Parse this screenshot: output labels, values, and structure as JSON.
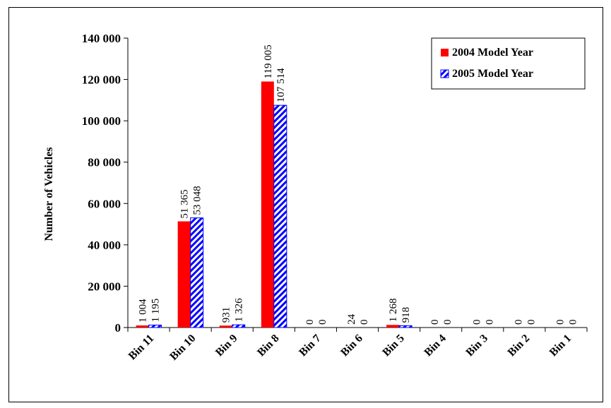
{
  "chart_data": {
    "type": "bar",
    "title": "",
    "xlabel": "",
    "ylabel": "Number of Vehicles",
    "ylim": [
      0,
      140000
    ],
    "yticks": [
      "0",
      "20 000",
      "40 000",
      "60 000",
      "80 000",
      "100 000",
      "120 000",
      "140 000"
    ],
    "categories": [
      "Bin 11",
      "Bin 10",
      "Bin 9",
      "Bin 8",
      "Bin 7",
      "Bin 6",
      "Bin 5",
      "Bin 4",
      "Bin 3",
      "Bin 2",
      "Bin 1"
    ],
    "series": [
      {
        "name": "2004 Model Year",
        "color": "#ff0000",
        "pattern": "solid",
        "values": [
          1004,
          51365,
          931,
          119005,
          0,
          24,
          1268,
          0,
          0,
          0,
          0
        ],
        "labels": [
          "1 004",
          "51 365",
          "931",
          "119 005",
          "0",
          "24",
          "1 268",
          "0",
          "0",
          "0",
          "0"
        ]
      },
      {
        "name": "2005 Model Year",
        "color": "#0000ff",
        "pattern": "diagonal-hatch",
        "values": [
          1195,
          53048,
          1326,
          107514,
          0,
          0,
          918,
          0,
          0,
          0,
          0
        ],
        "labels": [
          "1 195",
          "53 048",
          "1 326",
          "107 514",
          "0",
          "0",
          "918",
          "0",
          "0",
          "0",
          "0"
        ]
      }
    ],
    "legend_position": "top-right",
    "grid": false
  }
}
